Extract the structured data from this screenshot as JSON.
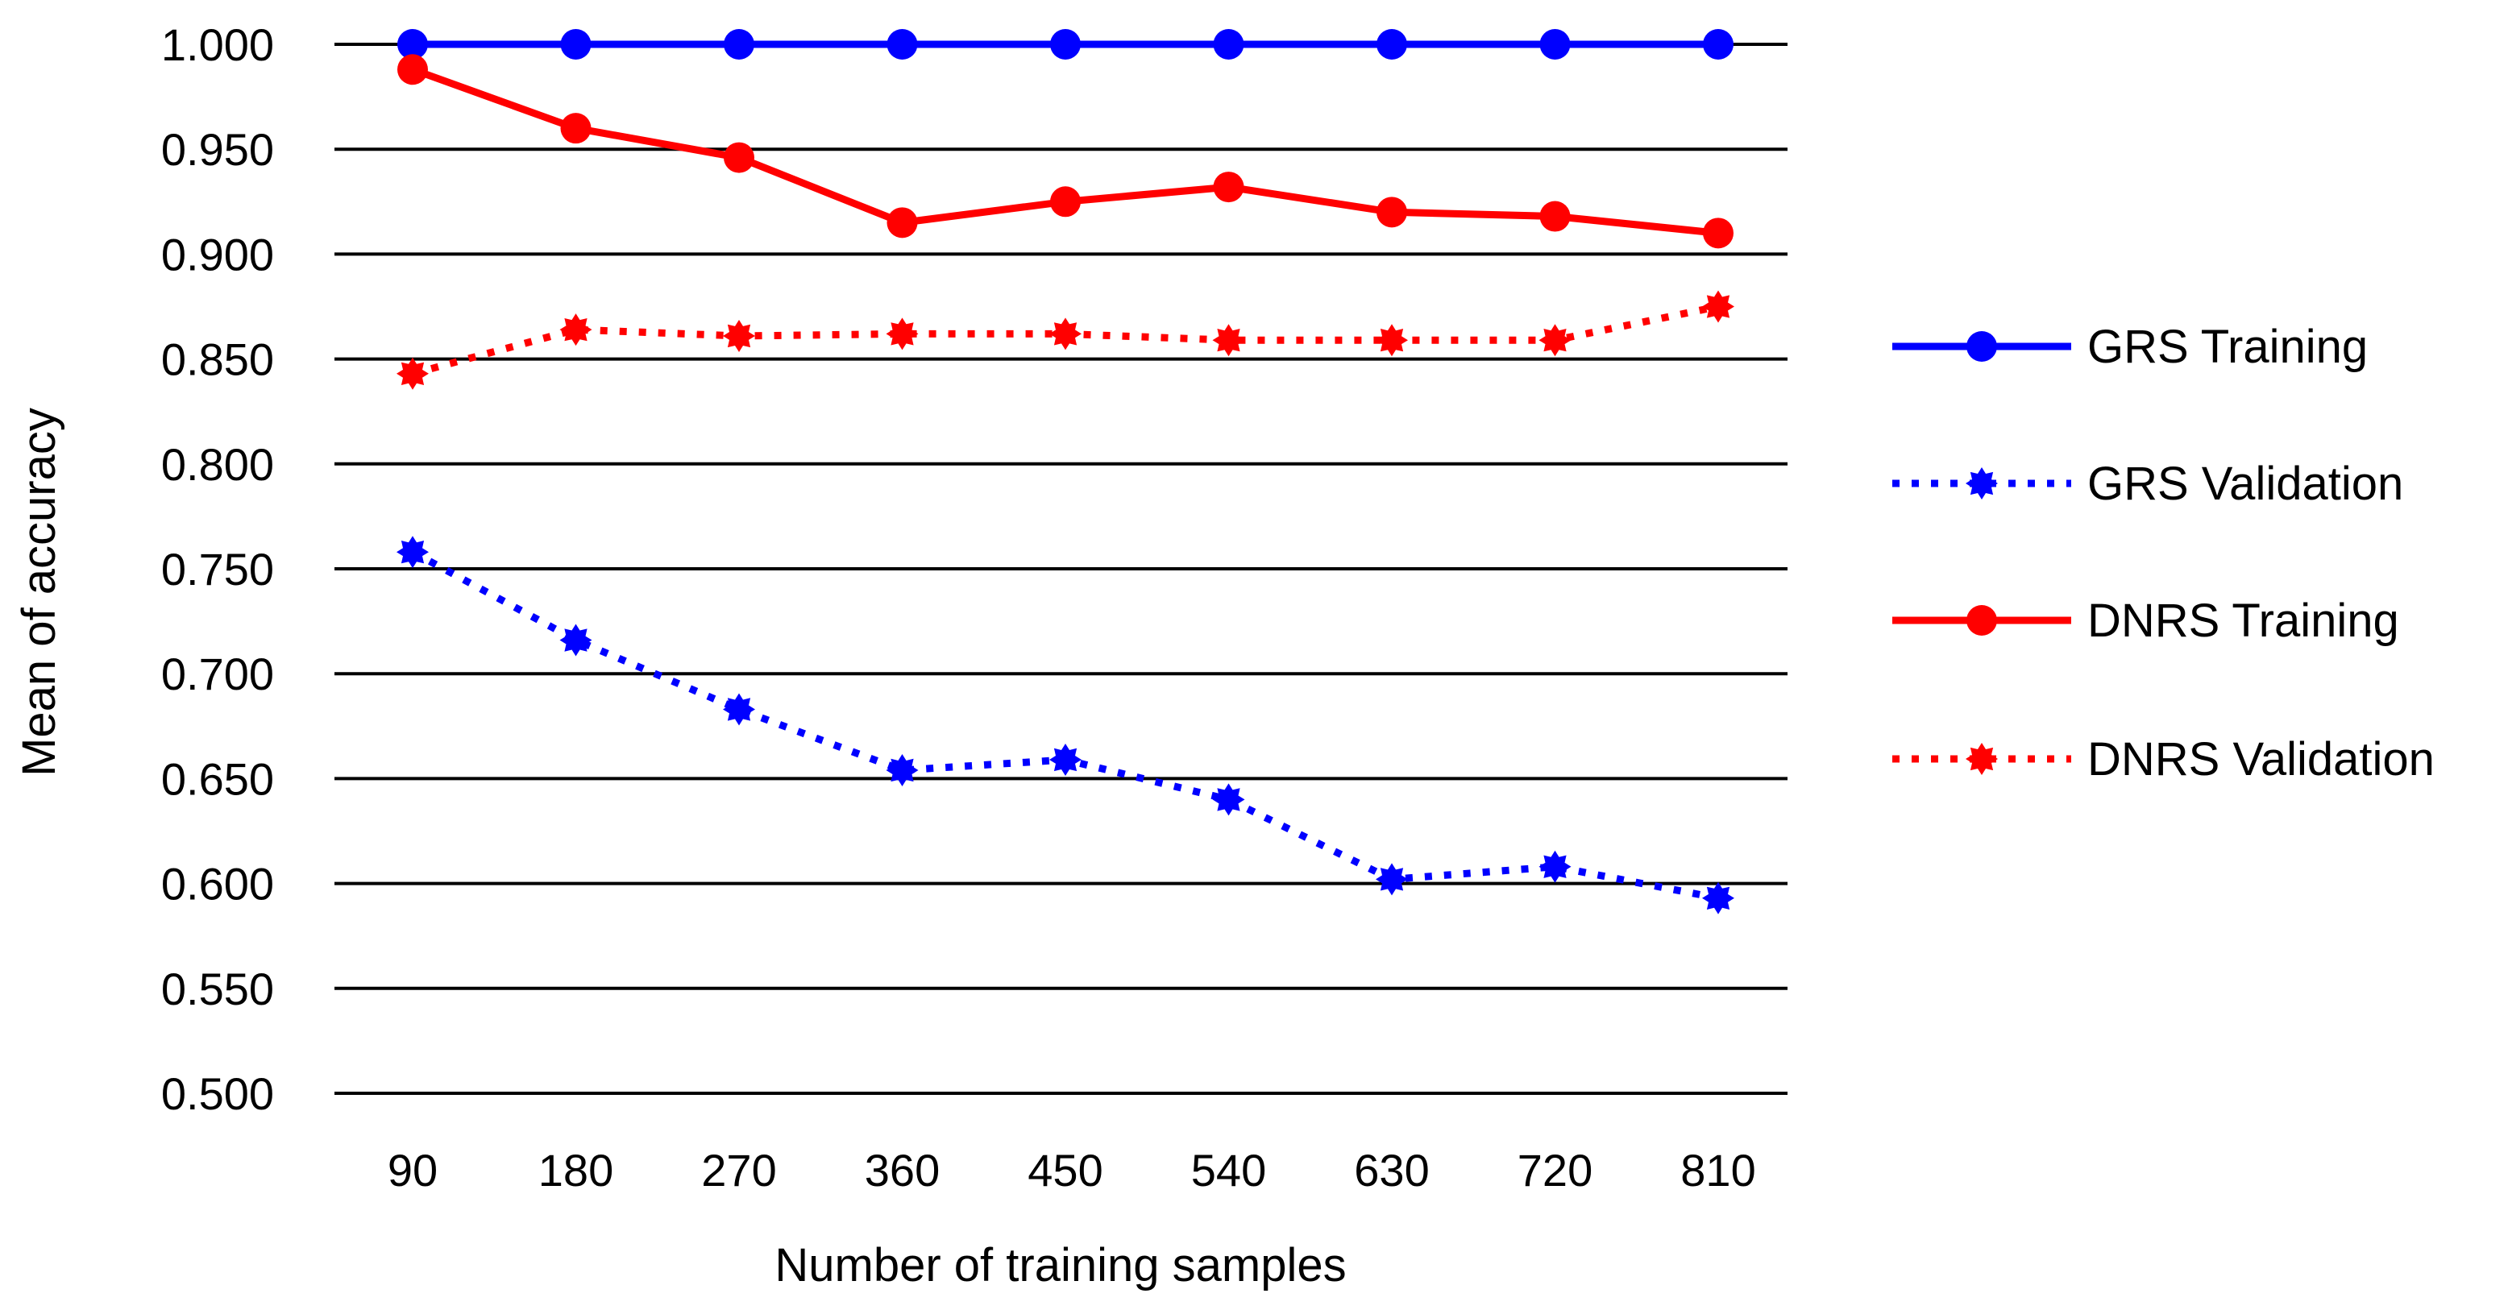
{
  "chart_data": {
    "type": "line",
    "title": "",
    "xlabel": "Number of training samples",
    "ylabel": "Mean of accuracy",
    "categories": [
      "90",
      "180",
      "270",
      "360",
      "450",
      "540",
      "630",
      "720",
      "810"
    ],
    "ylim": [
      0.5,
      1.0
    ],
    "yticks": [
      "0.500",
      "0.550",
      "0.600",
      "0.650",
      "0.700",
      "0.750",
      "0.800",
      "0.850",
      "0.900",
      "0.950",
      "1.000"
    ],
    "grid": true,
    "legend_position": "right",
    "series": [
      {
        "name": "GRS Training",
        "values": [
          1.0,
          1.0,
          1.0,
          1.0,
          1.0,
          1.0,
          1.0,
          1.0,
          1.0
        ],
        "color": "#0000ff",
        "line_style": "solid",
        "marker": "circle"
      },
      {
        "name": "GRS Validation",
        "values": [
          0.758,
          0.716,
          0.683,
          0.654,
          0.659,
          0.64,
          0.602,
          0.608,
          0.593
        ],
        "color": "#0000ff",
        "line_style": "dotted",
        "marker": "star"
      },
      {
        "name": "DNRS Training",
        "values": [
          0.988,
          0.96,
          0.946,
          0.915,
          0.925,
          0.932,
          0.92,
          0.918,
          0.91
        ],
        "color": "#ff0000",
        "line_style": "solid",
        "marker": "circle"
      },
      {
        "name": "DNRS Validation",
        "values": [
          0.843,
          0.864,
          0.861,
          0.862,
          0.862,
          0.859,
          0.859,
          0.859,
          0.875
        ],
        "color": "#ff0000",
        "line_style": "dotted",
        "marker": "star"
      }
    ]
  }
}
